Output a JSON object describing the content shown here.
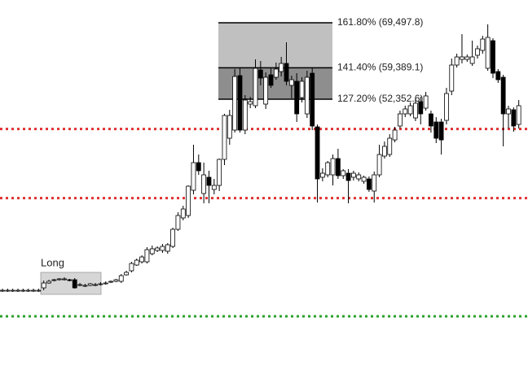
{
  "chart_data": {
    "type": "candlestick",
    "ylim": [
      -10400,
      74600
    ],
    "open": [
      9480,
      9480,
      9480,
      9480,
      9480,
      9480,
      9480,
      9480,
      10030,
      11120,
      11670,
      11850,
      12040,
      11850,
      11850,
      10760,
      10580,
      10580,
      10760,
      10940,
      11120,
      11300,
      11490,
      11490,
      12950,
      13860,
      15140,
      15870,
      15870,
      17690,
      18420,
      18420,
      18240,
      19330,
      23160,
      25720,
      26260,
      31920,
      38120,
      31190,
      34840,
      32100,
      33010,
      38850,
      43590,
      45420,
      57640,
      45420,
      51250,
      50890,
      58910,
      51250,
      57820,
      57270,
      58550,
      60370,
      55450,
      56360,
      52710,
      49060,
      58180,
      46150,
      34840,
      35380,
      35380,
      39030,
      35200,
      35750,
      34840,
      34470,
      33930,
      34470,
      31740,
      35380,
      39580,
      39940,
      43220,
      46330,
      49060,
      49060,
      48150,
      51800,
      50340,
      49060,
      47240,
      47240,
      47600,
      54170,
      60010,
      61280,
      61280,
      60370,
      62200,
      63290,
      59280,
      65480,
      58550,
      57270,
      49060,
      49980,
      46690
    ],
    "high": [
      9850,
      9850,
      9850,
      9850,
      9850,
      9850,
      9850,
      9850,
      11670,
      11850,
      12040,
      12220,
      12400,
      12040,
      12220,
      11120,
      10940,
      11120,
      11120,
      11300,
      11490,
      11670,
      12040,
      13130,
      13860,
      15870,
      16600,
      17330,
      19150,
      19520,
      19330,
      19880,
      20060,
      23520,
      26990,
      28450,
      33010,
      42130,
      39940,
      38120,
      36300,
      34470,
      39030,
      49060,
      49970,
      59100,
      59460,
      53260,
      52890,
      61280,
      60920,
      58360,
      59460,
      60560,
      61830,
      65110,
      57640,
      58180,
      57270,
      58730,
      59460,
      46690,
      36850,
      38490,
      39940,
      41220,
      36670,
      36670,
      36300,
      35930,
      35200,
      35020,
      36120,
      42130,
      42860,
      44500,
      46150,
      49790,
      50890,
      51620,
      52530,
      52890,
      53990,
      49790,
      48330,
      47970,
      54900,
      61460,
      62560,
      66940,
      62380,
      65480,
      64390,
      66570,
      69130,
      66030,
      59100,
      57820,
      50890,
      50520,
      52160
    ],
    "low": [
      9120,
      9120,
      9120,
      9120,
      9120,
      9120,
      9120,
      9120,
      9480,
      10940,
      11490,
      11670,
      11670,
      11490,
      9850,
      10400,
      10220,
      10400,
      10400,
      10580,
      10760,
      11120,
      11300,
      11120,
      12770,
      13500,
      14950,
      15500,
      15500,
      17330,
      18060,
      17880,
      17690,
      18970,
      22800,
      25170,
      25720,
      31010,
      35380,
      29000,
      29000,
      31010,
      31740,
      37570,
      42130,
      44870,
      44870,
      44500,
      50340,
      50340,
      55450,
      50160,
      54900,
      56720,
      57460,
      55450,
      52530,
      47240,
      51620,
      48150,
      45420,
      29180,
      33930,
      34840,
      33010,
      34470,
      34470,
      29000,
      34110,
      33930,
      33380,
      31560,
      29180,
      34840,
      39030,
      39400,
      42680,
      45780,
      48330,
      48520,
      47420,
      46690,
      49790,
      44870,
      42500,
      39940,
      46690,
      53260,
      59460,
      60370,
      60740,
      59820,
      61460,
      62560,
      58730,
      57090,
      56000,
      41770,
      45780,
      45050,
      45780
    ],
    "close": [
      9480,
      9480,
      9480,
      9480,
      9480,
      9480,
      9480,
      9480,
      11120,
      11490,
      11850,
      12040,
      12040,
      11670,
      10030,
      10760,
      10580,
      10940,
      10760,
      10940,
      11120,
      11490,
      11850,
      12770,
      13500,
      15500,
      16230,
      16960,
      18600,
      18790,
      18970,
      19330,
      19700,
      23160,
      26260,
      27720,
      32830,
      38120,
      36300,
      35380,
      33010,
      33010,
      38850,
      48700,
      48700,
      57450,
      45420,
      52160,
      51800,
      59280,
      57090,
      57270,
      55450,
      59100,
      60370,
      56360,
      56720,
      49060,
      56360,
      57270,
      46330,
      34470,
      35750,
      38120,
      39030,
      35200,
      36300,
      34110,
      35750,
      35380,
      34840,
      32100,
      35380,
      39940,
      41770,
      43590,
      45420,
      49060,
      50160,
      50890,
      51440,
      49060,
      53080,
      46330,
      43590,
      43220,
      53620,
      60010,
      61830,
      61830,
      61830,
      61830,
      63660,
      65840,
      66210,
      58180,
      56720,
      49060,
      50160,
      46330,
      50890
    ],
    "up_color": "#ffffff",
    "down_color": "#000000",
    "fib_levels": [
      {
        "value": 69497.8,
        "label": "161.80% (69,497.8)"
      },
      {
        "value": 59389.1,
        "label": "141.40% (59,389.1)"
      },
      {
        "value": 52352.6,
        "label": "127.20% (52,352.6)"
      }
    ],
    "fib_zone_colors": [
      "#c0c0c0",
      "#8e8e8e"
    ],
    "hlines": [
      {
        "value": 45670,
        "color": "#e03030"
      },
      {
        "value": 30170,
        "color": "#e03030"
      },
      {
        "value": 3650,
        "color": "#2aa02a"
      }
    ],
    "long_box": {
      "label": "Long",
      "top": 13500,
      "bottom": 8570,
      "color": "#d6d6d6"
    }
  }
}
